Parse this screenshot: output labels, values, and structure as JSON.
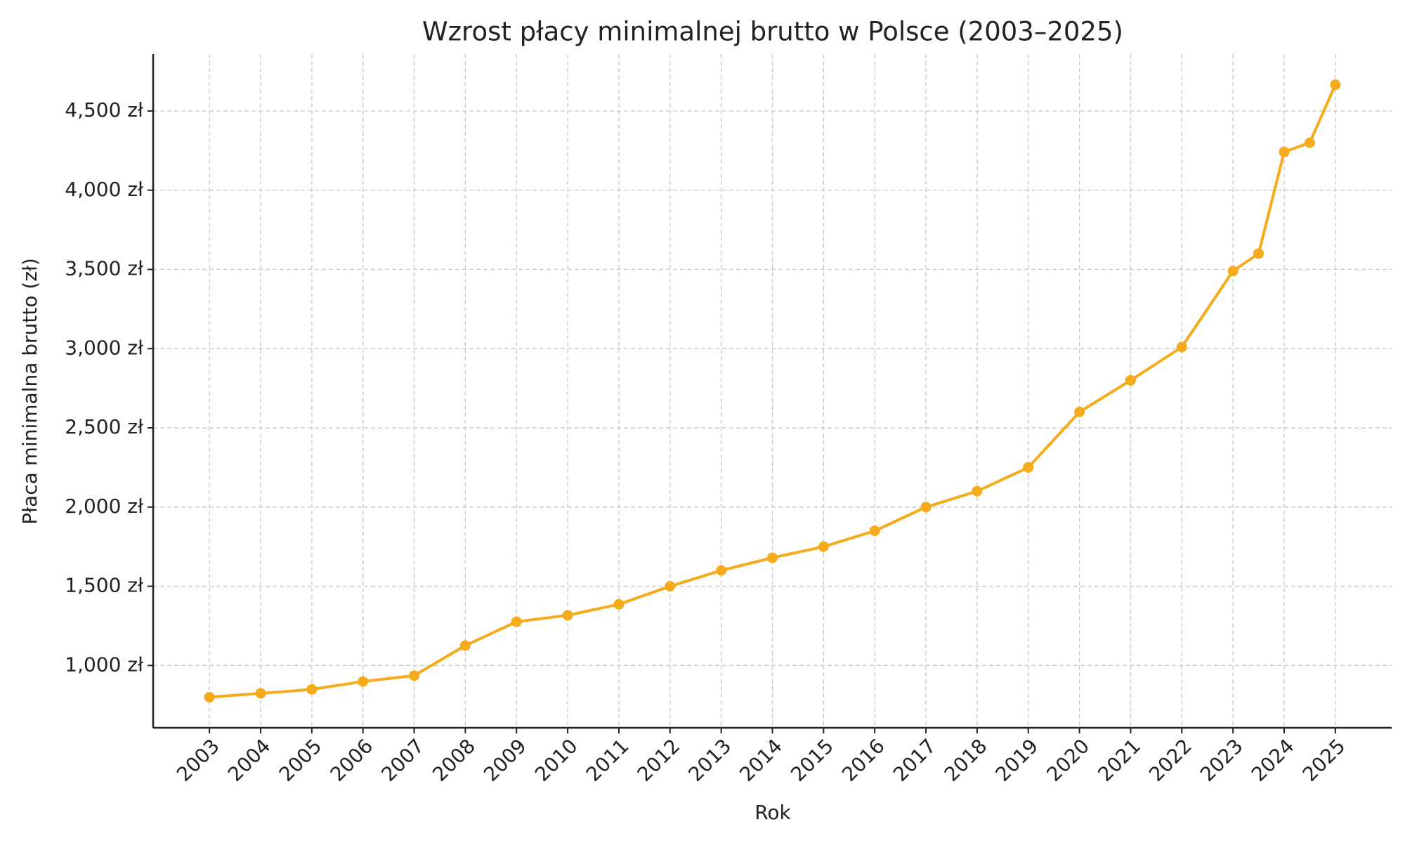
{
  "chart_data": {
    "type": "line",
    "title": "Wzrost płacy minimalnej brutto w Polsce (2003–2025)",
    "xlabel": "Rok",
    "ylabel": "Płaca minimalna brutto (zł)",
    "x": [
      2003,
      2004,
      2005,
      2006,
      2007,
      2008,
      2009,
      2010,
      2011,
      2012,
      2013,
      2014,
      2015,
      2016,
      2017,
      2018,
      2019,
      2020,
      2021,
      2022,
      2023,
      2023.5,
      2024,
      2024.5,
      2025
    ],
    "series": [
      {
        "name": "Płaca minimalna brutto",
        "color": "#f5ab1b",
        "values": [
          800,
          824,
          849,
          899,
          936,
          1126,
          1276,
          1317,
          1386,
          1500,
          1600,
          1680,
          1750,
          1850,
          2000,
          2100,
          2250,
          2600,
          2800,
          3010,
          3490,
          3600,
          4242,
          4300,
          4666
        ]
      }
    ],
    "xlim": [
      2001.9,
      2026.1
    ],
    "xticks": [
      2003,
      2004,
      2005,
      2006,
      2007,
      2008,
      2009,
      2010,
      2011,
      2012,
      2013,
      2014,
      2015,
      2016,
      2017,
      2018,
      2019,
      2020,
      2021,
      2022,
      2023,
      2024,
      2025
    ],
    "ylim": [
      606.7,
      4859.3
    ],
    "yticks": [
      {
        "value": 1000,
        "label": "1,000 zł"
      },
      {
        "value": 1500,
        "label": "1,500 zł"
      },
      {
        "value": 2000,
        "label": "2,000 zł"
      },
      {
        "value": 2500,
        "label": "2,500 zł"
      },
      {
        "value": 3000,
        "label": "3,000 zł"
      },
      {
        "value": 3500,
        "label": "3,500 zł"
      },
      {
        "value": 4000,
        "label": "4,000 zł"
      },
      {
        "value": 4500,
        "label": "4,500 zł"
      }
    ],
    "grid": true
  }
}
